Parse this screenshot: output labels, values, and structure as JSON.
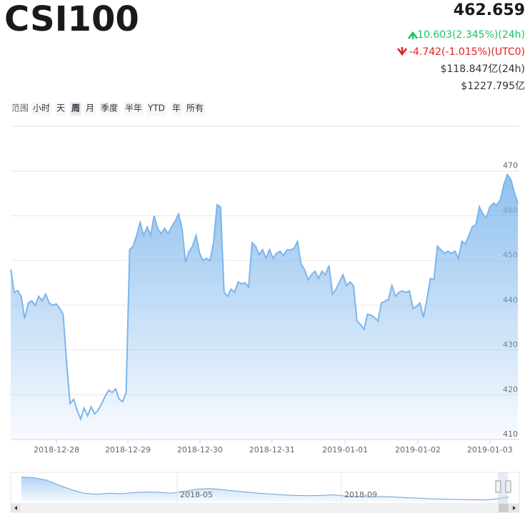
{
  "header": {
    "price": "462.659",
    "change_24h": "10.603(2.345%)(24h)",
    "change_utc0": "-4.742(-1.015%)(UTC0)",
    "volume_24h": "$118.847亿(24h)",
    "market_cap": "$1227.795亿"
  },
  "range_selector": {
    "label": "范围",
    "buttons": [
      "小时",
      "天",
      "周",
      "月",
      "季度",
      "半年",
      "YTD",
      "年",
      "所有"
    ],
    "selected": 2,
    "disabled": [
      7
    ]
  },
  "chart_data": {
    "type": "area",
    "title": "CSI100",
    "color": "#7cb5ec",
    "values": [
      448,
      442.9,
      443.3,
      442,
      437,
      440.5,
      441,
      440,
      442,
      441,
      442.5,
      440.5,
      440,
      440.3,
      439.3,
      438,
      427,
      418,
      419,
      416.5,
      414.6,
      417,
      415.3,
      417.3,
      415.7,
      416.5,
      418,
      419.7,
      421,
      420.5,
      421.3,
      419,
      418.5,
      420.5,
      452.4,
      453.2,
      455.6,
      458.5,
      455.6,
      457.5,
      455.6,
      460,
      457.2,
      456,
      457.2,
      456,
      457.5,
      458.8,
      460.4,
      457.2,
      449.6,
      452,
      453.2,
      455.6,
      451.6,
      450,
      450.5,
      450,
      454,
      462.5,
      462,
      442.9,
      442,
      443.6,
      442.9,
      445.2,
      444.8,
      445,
      444.1,
      454,
      453.2,
      451.3,
      452.4,
      450.5,
      452.4,
      450.5,
      451.6,
      452.1,
      451.1,
      452.4,
      452.4,
      452.7,
      454.3,
      449.2,
      448,
      445.7,
      446.8,
      447.6,
      446,
      447.6,
      446.8,
      448.9,
      442.5,
      443.6,
      445.2,
      446.8,
      444.4,
      445.2,
      444.4,
      436.5,
      435.7,
      434.6,
      438,
      437.8,
      437.3,
      436.5,
      440.5,
      440.9,
      441.3,
      444.4,
      442,
      442.9,
      443.2,
      442.9,
      443.2,
      439.3,
      439.7,
      440.5,
      437.3,
      441.3,
      446,
      445.7,
      453.2,
      452.4,
      451.6,
      452.1,
      451.6,
      452.1,
      450.5,
      454.3,
      453.7,
      455.6,
      457.5,
      458,
      462,
      460.4,
      459.6,
      462,
      462.8,
      462.5,
      463.6,
      467,
      469.2,
      468.1,
      465.2,
      462.8
    ],
    "xlim": [
      0,
      145
    ],
    "xticks": [
      {
        "value": 13.1,
        "label": "2018-12-28"
      },
      {
        "value": 33.5,
        "label": "2018-12-29"
      },
      {
        "value": 54.1,
        "label": "2018-12-30"
      },
      {
        "value": 74.7,
        "label": "2018-12-31"
      },
      {
        "value": 95.6,
        "label": "2019-01-01"
      },
      {
        "value": 116.4,
        "label": "2019-01-02"
      },
      {
        "value": 137,
        "label": "2019-01-03"
      }
    ],
    "ylim": [
      410,
      480
    ],
    "yticks": [
      410,
      420,
      430,
      440,
      450,
      460,
      470
    ],
    "grid": true
  },
  "navigator": {
    "labels": [
      "2018-05",
      "2018-09"
    ],
    "values": [
      844,
      830,
      790,
      700,
      620,
      560,
      540,
      560,
      550,
      570,
      580,
      575,
      560,
      590,
      630,
      640,
      625,
      600,
      580,
      560,
      545,
      530,
      520,
      515,
      520,
      530,
      510,
      500,
      495,
      500,
      490,
      480,
      470,
      460,
      455,
      450,
      445,
      441,
      460,
      497
    ],
    "ylim": [
      400,
      900
    ]
  }
}
